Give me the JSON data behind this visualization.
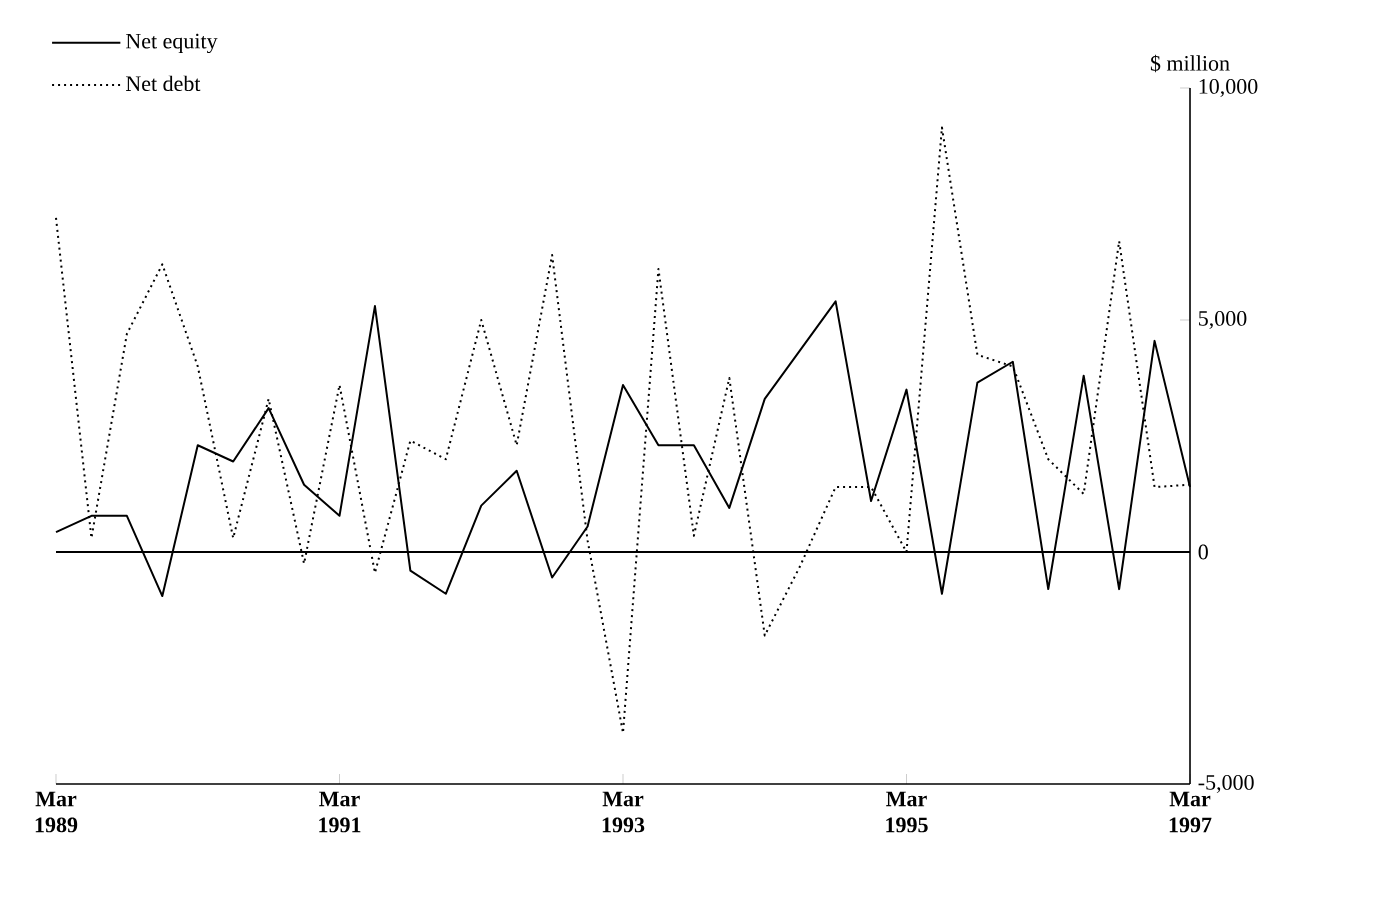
{
  "chart_data": {
    "type": "line",
    "ylabel": "$ million",
    "x": [
      "1989-03",
      "1989-06",
      "1989-09",
      "1989-12",
      "1990-03",
      "1990-06",
      "1990-09",
      "1990-12",
      "1991-03",
      "1991-06",
      "1991-09",
      "1991-12",
      "1992-03",
      "1992-06",
      "1992-09",
      "1992-12",
      "1993-03",
      "1993-06",
      "1993-09",
      "1993-12",
      "1994-03",
      "1994-06",
      "1994-09",
      "1994-12",
      "1995-03",
      "1995-06",
      "1995-09",
      "1995-12",
      "1996-03",
      "1996-06",
      "1996-09",
      "1996-12",
      "1997-03"
    ],
    "series": [
      {
        "name": "Net equity",
        "color": "#000000",
        "line_style": "solid",
        "values": [
          430,
          780,
          780,
          -950,
          2300,
          1950,
          3100,
          1450,
          780,
          5300,
          -400,
          -900,
          1000,
          1750,
          -550,
          550,
          3600,
          2300,
          2300,
          950,
          3300,
          4350,
          5400,
          1100,
          3500,
          -900,
          3650,
          4100,
          -800,
          3800,
          -800,
          4550,
          1400
        ]
      },
      {
        "name": "Net debt",
        "color": "#000000",
        "line_style": "dotted",
        "values": [
          7200,
          300,
          4700,
          6200,
          4000,
          300,
          3300,
          -250,
          3600,
          -450,
          2400,
          2000,
          5000,
          2300,
          6400,
          250,
          -3900,
          6100,
          350,
          3750,
          -1800,
          -300,
          1400,
          1400,
          0,
          9150,
          4250,
          4000,
          2000,
          1250,
          6700,
          1400,
          1450
        ]
      }
    ],
    "xlim": [
      "1989-03",
      "1997-03"
    ],
    "xticks": [
      {
        "value": "1989-03",
        "label": "Mar 1989"
      },
      {
        "value": "1991-03",
        "label": "Mar 1991"
      },
      {
        "value": "1993-03",
        "label": "Mar 1993"
      },
      {
        "value": "1995-03",
        "label": "Mar 1995"
      },
      {
        "value": "1997-03",
        "label": "Mar 1997"
      }
    ],
    "ylim": [
      -5000,
      10000
    ],
    "yticks": [
      {
        "value": -5000,
        "label": "-5,000"
      },
      {
        "value": 0,
        "label": "0"
      },
      {
        "value": 5000,
        "label": "5,000"
      },
      {
        "value": 10000,
        "label": "10,000"
      }
    ],
    "ref_lines": [
      {
        "axis": "y",
        "value": 0
      }
    ],
    "legend": "top left",
    "grid": false
  }
}
